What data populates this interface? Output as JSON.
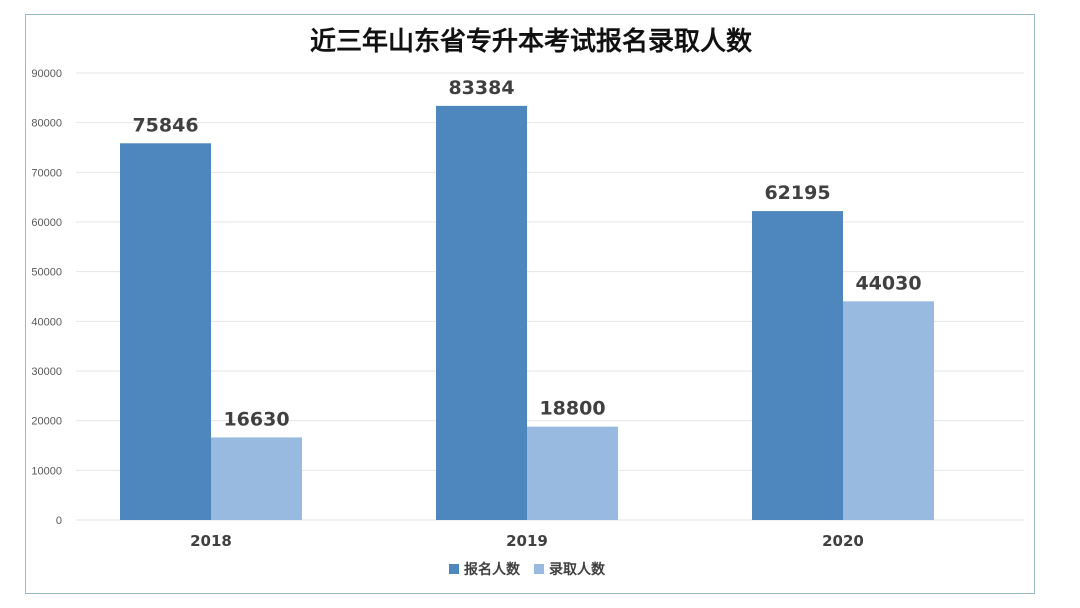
{
  "chart_data": {
    "type": "bar",
    "title": "近三年山东省专升本考试报名录取人数",
    "categories": [
      "2018",
      "2019",
      "2020"
    ],
    "series": [
      {
        "name": "报名人数",
        "values": [
          75846,
          83384,
          62195
        ],
        "color": "#4e87bd"
      },
      {
        "name": "录取人数",
        "values": [
          16630,
          18800,
          44030
        ],
        "color": "#99bae0"
      }
    ],
    "ylim": [
      0,
      90000
    ],
    "yticks": [
      "0",
      "10000",
      "20000",
      "30000",
      "40000",
      "50000",
      "60000",
      "70000",
      "80000",
      "90000"
    ],
    "grid": true,
    "legend": "bottom",
    "data_labels": true
  }
}
